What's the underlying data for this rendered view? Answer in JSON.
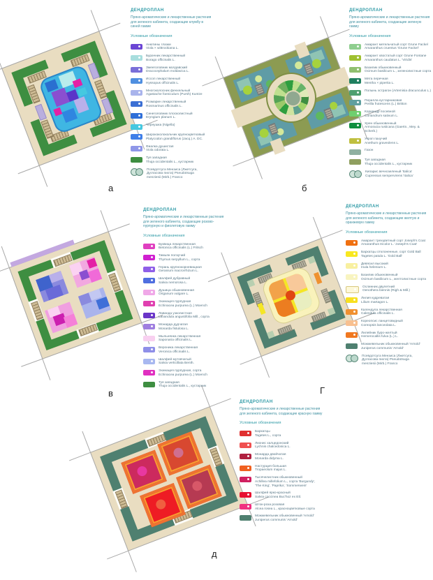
{
  "palette": {
    "paving": "#e9ddc1",
    "hedge_green": "#3e8e41",
    "hedge_teal": "#4f8070",
    "olive_lawn": "#8c9b52",
    "header_teal": "#2e9aa6"
  },
  "panels": [
    {
      "label": "а",
      "header": {
        "title": "ДЕНДРОПЛАН",
        "desc": [
          "Пряно-ароматические и лекарственные растения",
          "для зеленого кабинета, создающие клумбу в",
          "синей гамме"
        ],
        "legend_title": "Условные обозначения"
      },
      "legend": [
        {
          "color": "#6b46d4",
          "dot": true,
          "lines": [
            "Анютины глазки",
            "Viola × wittrockiana L."
          ]
        },
        {
          "color": "#a8dede",
          "dot": true,
          "lines": [
            "Бурачник лекарственный",
            "Borago officinalis L."
          ]
        },
        {
          "color": "#7a6fd8",
          "dot": true,
          "lines": [
            "Змееголовник молдавский",
            "Dracocephalum moldavica L."
          ]
        },
        {
          "color": "#4f8fe0",
          "dot": true,
          "lines": [
            "Иссоп лекарственный",
            "Hyssopus officinalis L."
          ]
        },
        {
          "color": "#a9b4ec",
          "dot": true,
          "lines": [
            "Многоколосник фенхельный",
            "Agastache foeniculum (Pursh) Kuntze"
          ]
        },
        {
          "color": "#3b6fd4",
          "dot": true,
          "lines": [
            "Розмарин лекарственный",
            "Rosmarinus officinalis L."
          ]
        },
        {
          "color": "#2f6fd8",
          "dot": true,
          "lines": [
            "Синеголовник плосколистный",
            "Eryngium planum L."
          ]
        },
        {
          "color": "#45c8e0",
          "dot": true,
          "lines": [
            "Чернушка (Nigella)"
          ]
        },
        {
          "color": "#3f7fe8",
          "dot": true,
          "lines": [
            "Ширококолокольчик крупноцветковый",
            "Platycodon grandiflorus (Jacq.) A. DC."
          ]
        },
        {
          "color": "#8f97e8",
          "dot": true,
          "lines": [
            "Фиалка душистая",
            "Viola odorata L."
          ]
        },
        {
          "color": "#3e8e41",
          "dot": false,
          "lines": [
            "Туя западная",
            "Thuja occidentalis L., кустарник"
          ]
        },
        {
          "shape": "circles",
          "lines": [
            "Псевдотсуга Мензиса (Лжетсуга,",
            "Дугласова пихта) Pseudotsuga",
            "menziesii (Mirb.) Franco"
          ]
        }
      ]
    },
    {
      "label": "б",
      "header": {
        "title": "ДЕНДРОПЛАН",
        "desc": [
          "Пряно-ароматические и лекарственные растения",
          "для зеленого кабинета, создающие зеленую гамму"
        ],
        "legend_title": "Условные обозначения"
      },
      "legend": [
        {
          "color": "#8fce8f",
          "dot": true,
          "lines": [
            "Амарант метельчатый сорт Grune Fackel",
            "Amaranthus cruentus 'Grune Fackel'"
          ]
        },
        {
          "color": "#9fc030",
          "dot": true,
          "lines": [
            "Амарант хвостатый сорт Grune Fontane",
            "Amaranthus caudatus L. 'Viridis'"
          ]
        },
        {
          "color": "#8fbf6f",
          "dot": true,
          "lines": [
            "Базилик обыкновенный",
            "Ocimum basilicum L., зеленолистные сорта"
          ]
        },
        {
          "color": "#1f7f5f",
          "dot": true,
          "lines": [
            "Мята перечная",
            "Mentha × piperita L."
          ]
        },
        {
          "color": "#4f9f6f",
          "dot": true,
          "lines": [
            "Полынь эстрагон (Artemisia dracunculus L.)"
          ]
        },
        {
          "color": "#5f9f9f",
          "dot": true,
          "lines": [
            "Перилла кустарниковая",
            "Perilla frutescens (L.) Britton"
          ]
        },
        {
          "color": "#6fcf6f",
          "dot": true,
          "lines": [
            "Кориандр посевной",
            "Coriandrum sativum L."
          ]
        },
        {
          "color": "#0f8f3f",
          "dot": true,
          "lines": [
            "Хрен обыкновенный",
            "Armoracia rusticana (Gaertn., Mey. &",
            "Scherb.)"
          ]
        },
        {
          "color": "#bfbf3f",
          "dot": true,
          "lines": [
            "Укроп пахучий",
            "Anethum graveolens L."
          ]
        },
        {
          "color": "#8fb0a0",
          "dot": false,
          "lines": [
            "Газон"
          ]
        },
        {
          "color": "#8f9f5f",
          "dot": false,
          "lines": [
            "Туя западная",
            "Thuja occidentalis L., кустарник"
          ]
        },
        {
          "shape": "circles",
          "lines": [
            "Кипарис вечнозеленый 'Italica'",
            "Cupressus sempervirens 'Italica'"
          ]
        }
      ]
    },
    {
      "label": "в",
      "header": {
        "title": "ДЕНДРОПЛАН",
        "desc": [
          "Пряно-ароматические и лекарственные растения",
          "для зеленого кабинета, создающие розово-",
          "пурпурную и фиолетовую гамму"
        ],
        "legend_title": "Условные обозначения"
      },
      "legend": [
        {
          "color": "#e040c0",
          "dot": true,
          "lines": [
            "Буквица лекарственная",
            "Betonica officinalis (L.) Fritsch"
          ]
        },
        {
          "color": "#d020d0",
          "dot": true,
          "lines": [
            "Тимьян ползучий",
            "Thymus serpyllum L., сорта"
          ]
        },
        {
          "color": "#8f5fe8",
          "dot": true,
          "lines": [
            "Герань крупнокорневищная",
            "Geranium macrorrhizum L."
          ]
        },
        {
          "color": "#4f6fe0",
          "dot": true,
          "lines": [
            "Шалфей дубравный",
            "Salvia nemorosa L."
          ]
        },
        {
          "color": "#f0a8e8",
          "dot": true,
          "lines": [
            "Душица обыкновенная",
            "Origanum vulgare L."
          ]
        },
        {
          "color": "#e040b0",
          "dot": true,
          "lines": [
            "Эхинацея пурпурная",
            "Echinacea purpurea (L.) Moench"
          ]
        },
        {
          "color": "#6a35c8",
          "dot": true,
          "lines": [
            "Лаванда узколистная",
            "Lavandula angustifolia Mill., сорта"
          ]
        },
        {
          "color": "#9f7fe0",
          "dot": true,
          "lines": [
            "Монарда дудчатая",
            "Monarda fistulosa L."
          ]
        },
        {
          "color": "#f8d0f0",
          "dot": false,
          "lines": [
            "Мыльнянка лекарственная",
            "Saponaria officinalis L."
          ]
        },
        {
          "color": "#8f8fe8",
          "dot": true,
          "lines": [
            "Вероника лекарственная",
            "Veronica officinalis L."
          ]
        },
        {
          "color": "#a8b8f0",
          "dot": true,
          "lines": [
            "Шалфей мутовчатый",
            "Salvia verticillata Benth."
          ]
        },
        {
          "color": "#e030c0",
          "dot": true,
          "lines": [
            "Эхинацея пурпурная, сорта",
            "Echinacea purpurea (L.) Moench"
          ]
        },
        {
          "color": "#3e8e41",
          "dot": false,
          "lines": [
            "Туя западная",
            "Thuja occidentalis L., кустарник"
          ]
        }
      ]
    },
    {
      "label": "Г",
      "header": {
        "title": "ДЕНДРОПЛАН",
        "desc": [
          "Пряно-ароматические и лекарственные растения",
          "для зеленого кабинета, создающие желтую и",
          "оранжевую гамму"
        ],
        "legend_title": "Условные обозначения"
      },
      "legend": [
        {
          "color": "#f07010",
          "dot": true,
          "lines": [
            "Амарант трехцветный сорт Joseph's Coat",
            "Amaranthus tricolor L. 'Joseph's Coat'"
          ]
        },
        {
          "color": "#f8e820",
          "dot": true,
          "lines": [
            "Бархатцы отклоненные, сорт Gold Ball",
            "Tagetes patula L. 'Gold Ball'"
          ]
        },
        {
          "color": "#f8f0a0",
          "dot": true,
          "lines": [
            "Девясил высокий",
            "Inula helenium L."
          ]
        },
        {
          "color": "#f8f4c0",
          "dot": true,
          "lines": [
            "Базилик обыкновенный",
            "Ocimum basilicum L., желтолистные сорта"
          ]
        },
        {
          "color": "#fdf8d8",
          "dot": true,
          "border": "#d8c880",
          "lines": [
            "Ослинник двулетний",
            "Oenothera biennis (Righ & Mill.)"
          ]
        },
        {
          "color": "#f8e020",
          "dot": true,
          "lines": [
            "Лилия кудреватая",
            "Lilium martagon L."
          ]
        },
        {
          "color": "#f09030",
          "dot": true,
          "lines": [
            "Календула лекарственная",
            "Calendula officinalis L."
          ]
        },
        {
          "color": "#f8c090",
          "dot": true,
          "lines": [
            "Кореопсис ланцетовидный",
            "Coreopsis lanceolata L."
          ]
        },
        {
          "color": "#f07820",
          "dot": true,
          "lines": [
            "Лилейник буро-желтый",
            "Hemerocallis fulva (L.) L."
          ]
        },
        {
          "color": "#4f8070",
          "dot": false,
          "lines": [
            "Можжевельник обыкновенный 'Arnold'",
            "Juniperus communis 'Arnold'"
          ]
        },
        {
          "shape": "circles",
          "lines": [
            "Псевдотсуга Мензиса (Лжетсуга,",
            "Дугласова пихта) Pseudotsuga",
            "menziesii (Mirb.) Franco"
          ]
        }
      ]
    },
    {
      "label": "д",
      "header": {
        "title": "ДЕНДРОПЛАН",
        "desc": [
          "Пряно-ароматические и лекарственные растения",
          "для зеленого кабинета, создающие красную гамму"
        ],
        "legend_title": "Условные обозначения"
      },
      "legend": [
        {
          "color": "#e03030",
          "dot": true,
          "lines": [
            "Бархатцы",
            "Tagetes L., сорта"
          ]
        },
        {
          "color": "#f05050",
          "dot": true,
          "lines": [
            "Лихнис халцедонский",
            "Lychnis chalcedonica L."
          ]
        },
        {
          "color": "#b02040",
          "dot": true,
          "lines": [
            "Монарда двойчатая",
            "Monarda didyma L."
          ]
        },
        {
          "color": "#f06020",
          "dot": true,
          "lines": [
            "Настурция большая",
            "Tropaeolum majus L."
          ]
        },
        {
          "color": "#d02060",
          "dot": true,
          "lines": [
            "Тысячелистник обыкновенный",
            "Achillea millefolium L., сорта 'Burgundy',",
            "'The King', 'Paprika', 'Sommerwein'"
          ]
        },
        {
          "color": "#e81030",
          "dot": true,
          "lines": [
            "Шалфей ярко-красный",
            "Salvia coccinea Buc'hoz ex Etl."
          ]
        },
        {
          "color": "#f03080",
          "dot": true,
          "lines": [
            "Шток-роза розовая",
            "Alcea rosea L., красноцветковые сорта"
          ]
        },
        {
          "color": "#4f8070",
          "dot": false,
          "lines": [
            "Можжевельник обыкновенный 'Arnold'",
            "Juniperus communis 'Arnold'"
          ]
        }
      ]
    }
  ]
}
